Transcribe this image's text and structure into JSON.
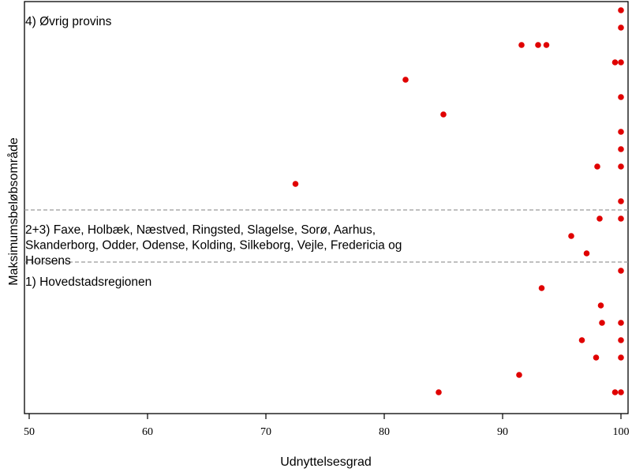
{
  "chart_data": {
    "type": "scatter",
    "xlabel": "Udnyttelsesgrad",
    "ylabel": "Maksimumsbeløbsområde",
    "xlim": [
      50,
      100
    ],
    "xticks": [
      "50",
      "60",
      "70",
      "80",
      "90",
      "100"
    ],
    "grid": false,
    "marker_color": "#e00000",
    "separator_color": "#9a9a9a",
    "groups": [
      {
        "label_lines": [
          "4) Øvrig provins"
        ],
        "rows": [
          [
            100
          ],
          [
            100
          ],
          [
            91.6,
            93,
            93.7
          ],
          [
            99.5,
            100
          ],
          [
            81.8
          ],
          [
            100
          ],
          [
            85
          ],
          [
            100
          ],
          [
            100
          ],
          [
            98,
            100
          ],
          [
            72.5
          ],
          [
            100
          ]
        ]
      },
      {
        "label_lines": [
          "2+3) Faxe, Holbæk, Næstved, Ringsted, Slagelse, Sorø, Aarhus,",
          "Skanderborg, Odder, Odense, Kolding, Silkeborg, Vejle, Fredericia og",
          "Horsens"
        ],
        "rows": [
          [
            98.2,
            100
          ],
          [
            95.8
          ],
          [
            97.1
          ]
        ]
      },
      {
        "label_lines": [
          "1) Hovedstadsregionen"
        ],
        "rows": [
          [
            100
          ],
          [
            93.3
          ],
          [
            98.3
          ],
          [
            98.4,
            100
          ],
          [
            96.7,
            100
          ],
          [
            97.9,
            100
          ],
          [
            91.4
          ],
          [
            84.6,
            99.5,
            100
          ]
        ]
      }
    ]
  }
}
